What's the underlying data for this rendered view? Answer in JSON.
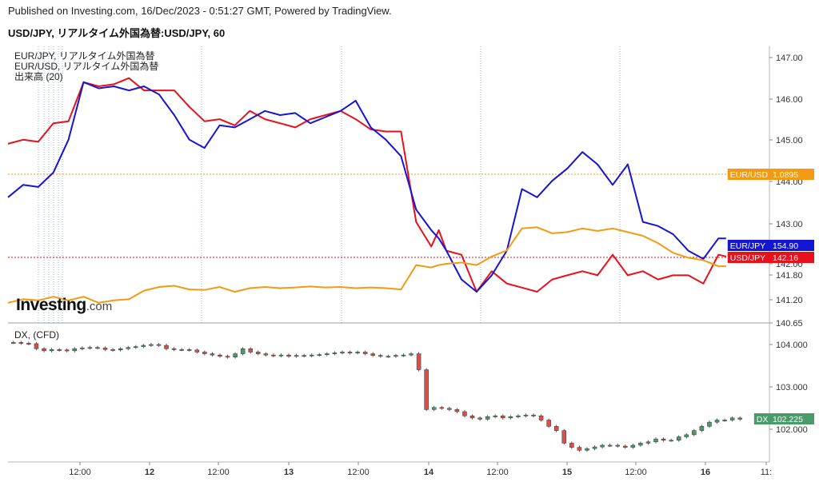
{
  "header": {
    "published": "Published on Investing.com, 16/Dec/2023 - 0:51:27 GMT, Powered by TradingView.",
    "chart_title": "USD/JPY, リアルタイム外国為替:USD/JPY, 60"
  },
  "legend": {
    "line1": "EUR/JPY, リアルタイム外国為替",
    "line2": "EUR/USD, リアルタイム外国為替",
    "line3": "出来高 (20)"
  },
  "dx_title": "DX, (CFD)",
  "logo": {
    "main": "Investing",
    "suffix": ".com"
  },
  "colors": {
    "usdjpy": "#e8101b",
    "eurjpy": "#1515d4",
    "eurusd": "#f39a12",
    "dx": "#4a9a6a",
    "dx_down": "#d8504a"
  },
  "x_ticks": [
    "12:00",
    "12",
    "12:00",
    "13",
    "12:00",
    "14",
    "12:00",
    "15",
    "12:00",
    "16",
    "11:"
  ],
  "main_y_ticks": [
    "147.00",
    "146.00",
    "145.00",
    "144.00",
    "143.00",
    "142.00",
    "141.80",
    "141.20",
    "140.65"
  ],
  "dx_y_ticks": [
    "104.000",
    "103.000",
    "102.000"
  ],
  "price_tags": [
    {
      "label": "EUR/USD",
      "value": "1.0895",
      "color": "#f39a12"
    },
    {
      "label": "EUR/JPY",
      "value": "154.90",
      "color": "#1515d4"
    },
    {
      "label": "USD/JPY",
      "value": "142.16",
      "color": "#e8101b"
    },
    {
      "label": "DX",
      "value": "102.225",
      "color": "#4a9a6a"
    }
  ],
  "chart_data": [
    {
      "type": "line",
      "title": "USD/JPY, リアルタイム外国為替:USD/JPY, 60",
      "x_range": [
        0,
        100
      ],
      "ylim": [
        140.65,
        147.2
      ],
      "series": [
        {
          "name": "USD/JPY",
          "color": "#e8101b",
          "x": [
            0,
            2,
            4,
            6,
            8,
            10,
            12,
            14,
            16,
            18,
            20,
            22,
            24,
            26,
            28,
            30,
            32,
            34,
            36,
            38,
            40,
            42,
            44,
            46,
            48,
            50,
            52,
            54,
            56,
            57,
            58,
            60,
            62,
            64,
            66,
            68,
            70,
            72,
            74,
            76,
            78,
            80,
            82,
            84,
            86,
            88,
            90,
            92,
            94,
            95
          ],
          "y": [
            144.9,
            145.0,
            144.95,
            145.4,
            145.45,
            146.4,
            146.3,
            146.35,
            146.5,
            146.2,
            146.2,
            146.2,
            145.8,
            145.45,
            145.5,
            145.35,
            145.7,
            145.5,
            145.4,
            145.3,
            145.5,
            145.6,
            145.7,
            145.5,
            145.25,
            145.2,
            145.2,
            143.0,
            142.4,
            142.8,
            142.3,
            142.2,
            141.3,
            141.8,
            141.5,
            141.4,
            141.3,
            141.6,
            141.7,
            141.8,
            141.7,
            142.2,
            141.7,
            141.8,
            141.6,
            141.7,
            141.7,
            141.5,
            142.2,
            142.16
          ]
        },
        {
          "name": "EUR/JPY",
          "color": "#1515d4",
          "x": [
            0,
            2,
            4,
            6,
            8,
            10,
            12,
            14,
            16,
            18,
            20,
            22,
            24,
            26,
            28,
            30,
            32,
            34,
            36,
            38,
            40,
            42,
            44,
            46,
            48,
            50,
            52,
            54,
            56,
            57,
            58,
            60,
            62,
            64,
            66,
            68,
            70,
            72,
            74,
            76,
            78,
            80,
            82,
            84,
            86,
            88,
            90,
            92,
            94,
            95
          ],
          "y": [
            143.6,
            143.9,
            143.85,
            144.2,
            145.0,
            146.4,
            146.25,
            146.3,
            146.2,
            146.3,
            146.1,
            145.6,
            145.0,
            144.8,
            145.35,
            145.3,
            145.5,
            145.7,
            145.6,
            145.65,
            145.4,
            145.55,
            145.7,
            145.95,
            145.3,
            145.0,
            144.6,
            143.3,
            142.8,
            142.6,
            142.3,
            141.6,
            141.3,
            141.7,
            142.3,
            143.8,
            143.6,
            144.0,
            144.3,
            144.7,
            144.4,
            143.9,
            144.4,
            143.0,
            142.9,
            142.7,
            142.3,
            142.1,
            142.6,
            142.6
          ]
        },
        {
          "name": "EUR/USD",
          "color": "#f39a12",
          "x": [
            0,
            2,
            4,
            6,
            8,
            10,
            12,
            14,
            16,
            18,
            20,
            22,
            24,
            26,
            28,
            30,
            32,
            34,
            36,
            38,
            40,
            42,
            44,
            46,
            48,
            50,
            52,
            54,
            56,
            57,
            58,
            60,
            62,
            64,
            66,
            68,
            70,
            72,
            74,
            76,
            78,
            80,
            82,
            84,
            86,
            88,
            90,
            92,
            94,
            95
          ],
          "y": [
            1.0745,
            1.076,
            1.0755,
            1.077,
            1.0755,
            1.077,
            1.0745,
            1.0755,
            1.076,
            1.0795,
            1.081,
            1.0815,
            1.08,
            1.0798,
            1.081,
            1.079,
            1.0805,
            1.081,
            1.0805,
            1.0808,
            1.0812,
            1.0808,
            1.081,
            1.0805,
            1.0808,
            1.0805,
            1.08,
            1.09,
            1.089,
            1.09,
            1.0905,
            1.091,
            1.09,
            1.0935,
            1.096,
            1.105,
            1.1055,
            1.103,
            1.1035,
            1.105,
            1.104,
            1.105,
            1.1035,
            1.102,
            1.099,
            1.095,
            1.093,
            1.092,
            1.0895,
            1.0895
          ]
        }
      ]
    },
    {
      "type": "candlestick",
      "title": "DX, (CFD)",
      "ylim": [
        101.2,
        104.3
      ],
      "values_close": [
        104.05,
        104.03,
        104.02,
        103.9,
        103.85,
        103.88,
        103.87,
        103.85,
        103.9,
        103.92,
        103.93,
        103.92,
        103.88,
        103.87,
        103.9,
        103.93,
        103.95,
        103.98,
        104.0,
        103.98,
        103.9,
        103.88,
        103.88,
        103.87,
        103.82,
        103.78,
        103.75,
        103.72,
        103.7,
        103.78,
        103.9,
        103.82,
        103.78,
        103.75,
        103.73,
        103.75,
        103.72,
        103.74,
        103.73,
        103.75,
        103.76,
        103.78,
        103.8,
        103.82,
        103.8,
        103.82,
        103.78,
        103.74,
        103.72,
        103.72,
        103.74,
        103.75,
        103.78,
        103.4,
        102.45,
        102.5,
        102.48,
        102.45,
        102.4,
        102.3,
        102.25,
        102.22,
        102.28,
        102.3,
        102.25,
        102.28,
        102.3,
        102.32,
        102.3,
        102.2,
        102.05,
        101.95,
        101.65,
        101.55,
        101.48,
        101.52,
        101.56,
        101.6,
        101.6,
        101.58,
        101.55,
        101.6,
        101.65,
        101.68,
        101.75,
        101.72,
        101.72,
        101.8,
        101.85,
        101.95,
        102.05,
        102.15,
        102.2,
        102.2,
        102.25,
        102.22
      ]
    }
  ]
}
